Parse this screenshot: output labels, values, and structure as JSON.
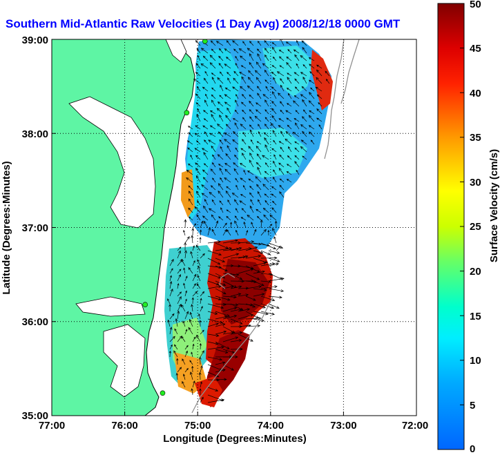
{
  "chart_data": {
    "type": "heatmap",
    "title": "Southern Mid-Atlantic Raw Velocities (1 Day Avg) 2008/12/18 0000 GMT",
    "xlabel": "Longitude (Degrees:Minutes)",
    "ylabel": "Latitude (Degrees:Minutes)",
    "colorbar_label": "Surface Velocity (cm/s)",
    "x_ticks": [
      "77:00",
      "76:00",
      "75:00",
      "74:00",
      "73:00",
      "72:00"
    ],
    "y_ticks": [
      "39:00",
      "38:00",
      "37:00",
      "36:00",
      "35:00"
    ],
    "colorbar_ticks": [
      "0",
      "5",
      "10",
      "15",
      "20",
      "25",
      "30",
      "35",
      "40",
      "45",
      "50"
    ],
    "xlim": [
      -77,
      -72
    ],
    "ylim": [
      35,
      39
    ],
    "clim": [
      0,
      50
    ],
    "grid": "dotted",
    "colors": {
      "land": "#5ef5a4",
      "title": "#0000ff",
      "colormap": [
        "#0066ff",
        "#00ccff",
        "#00ffcc",
        "#66ff66",
        "#ffff00",
        "#ff9900",
        "#ff0000",
        "#800000"
      ]
    },
    "station_markers": [
      {
        "lon": -74.9,
        "lat": 38.98
      },
      {
        "lon": -75.15,
        "lat": 38.22
      },
      {
        "lon": -75.72,
        "lat": 36.18
      },
      {
        "lon": -75.48,
        "lat": 35.24
      }
    ]
  }
}
